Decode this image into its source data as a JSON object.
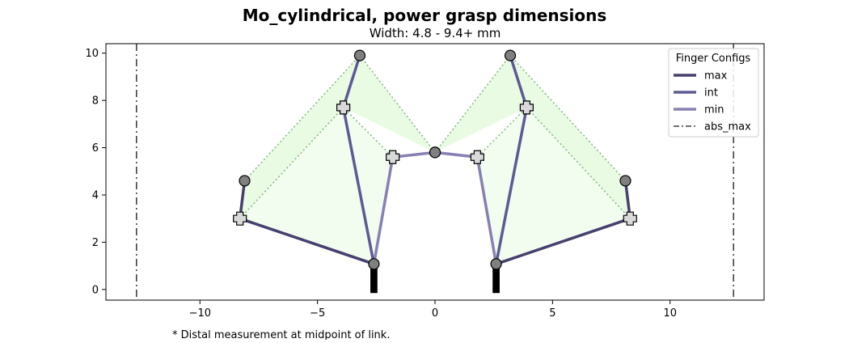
{
  "chart_data": {
    "type": "line",
    "title": "Mo_cylindrical, power grasp dimensions",
    "subtitle": "Width: 4.8 - 9.4+ mm",
    "footnote": "* Distal measurement at midpoint of link.",
    "xlabel": "",
    "ylabel": "",
    "xlim": [
      -14,
      14
    ],
    "ylim": [
      -0.45,
      10.4
    ],
    "xticks": [
      -10,
      -5,
      0,
      5,
      10
    ],
    "yticks": [
      0,
      2,
      4,
      6,
      8,
      10
    ],
    "grid": false,
    "legend": {
      "title": "Finger Configs",
      "position": "top-right"
    },
    "palm": {
      "left_base": [
        -2.6,
        -0.15
      ],
      "right_base": [
        2.6,
        -0.15
      ],
      "width": 0.3
    },
    "series": [
      {
        "name": "max",
        "color": "#46406f",
        "left": [
          [
            -2.6,
            1.08
          ],
          [
            -8.3,
            3.0
          ],
          [
            -8.1,
            4.6
          ]
        ],
        "right": [
          [
            2.6,
            1.08
          ],
          [
            8.3,
            3.0
          ],
          [
            8.1,
            4.6
          ]
        ]
      },
      {
        "name": "int",
        "color": "#5e5a96",
        "left": [
          [
            -2.6,
            1.08
          ],
          [
            -3.9,
            7.7
          ],
          [
            -3.2,
            9.9
          ]
        ],
        "right": [
          [
            2.6,
            1.08
          ],
          [
            3.9,
            7.7
          ],
          [
            3.2,
            9.9
          ]
        ]
      },
      {
        "name": "min",
        "color": "#8680b4",
        "left": [
          [
            -2.6,
            1.08
          ],
          [
            -1.8,
            5.6
          ],
          [
            0.0,
            5.8
          ]
        ],
        "right": [
          [
            2.6,
            1.08
          ],
          [
            1.8,
            5.6
          ],
          [
            0.0,
            5.8
          ]
        ]
      },
      {
        "name": "abs_max",
        "color": "#404040",
        "style": "dashdot",
        "x": [
          -12.7,
          12.7
        ]
      }
    ],
    "outer_envelope_color": "#e9fbe3",
    "inner_envelope_color": "#f2fcef",
    "envelope_edge_color": "#7db77d",
    "joint_color": "#808080",
    "midpoint_marker_color": "#d9d9d9"
  }
}
